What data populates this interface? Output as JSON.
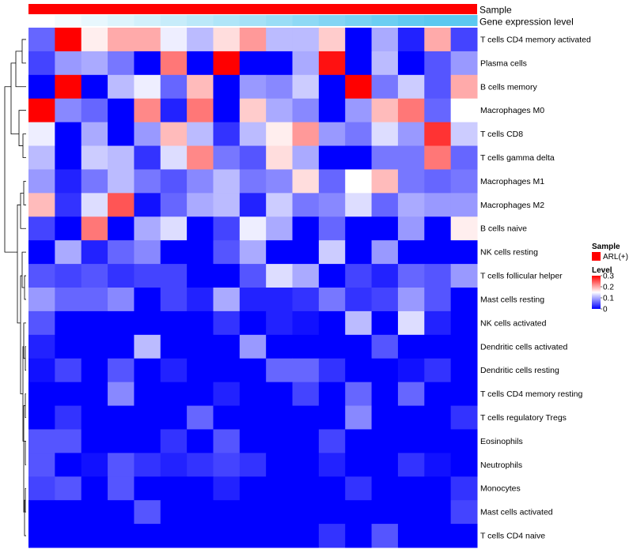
{
  "chart_data": {
    "type": "heatmap",
    "title": "",
    "annotations": {
      "sample_label": "Sample",
      "sample_color": "#ff0000",
      "expression_label": "Gene expression level",
      "expression_colors": [
        "#ffffff",
        "#5bc8f0"
      ]
    },
    "rows": [
      "T cells CD4 memory activated",
      "Plasma cells",
      "B cells memory",
      "Macrophages M0",
      "T cells CD8",
      "T cells gamma delta",
      "Macrophages M1",
      "Macrophages M2",
      "B cells naive",
      "NK cells resting",
      "T cells follicular helper",
      "Mast cells resting",
      "NK cells activated",
      "Dendritic cells activated",
      "Dendritic cells resting",
      "T cells CD4 memory resting",
      "T cells regulatory  Tregs",
      "Eosinophils",
      "Neutrophils",
      "Monocytes",
      "Mast cells activated",
      "T cells CD4 naive"
    ],
    "n_columns": 17,
    "values": [
      [
        0.06,
        0.3,
        0.16,
        0.2,
        0.2,
        0.14,
        0.11,
        0.17,
        0.21,
        0.11,
        0.11,
        0.18,
        0.0,
        0.1,
        0.02,
        0.2,
        0.04
      ],
      [
        0.04,
        0.09,
        0.1,
        0.07,
        0.0,
        0.23,
        0.0,
        0.3,
        0.0,
        0.0,
        0.1,
        0.29,
        0.0,
        0.11,
        0.0,
        0.05,
        0.09
      ],
      [
        0.0,
        0.3,
        0.0,
        0.11,
        0.14,
        0.06,
        0.19,
        0.0,
        0.09,
        0.08,
        0.12,
        0.0,
        0.3,
        0.07,
        0.12,
        0.05,
        0.2
      ],
      [
        0.3,
        0.08,
        0.06,
        0.0,
        0.22,
        0.02,
        0.23,
        0.0,
        0.18,
        0.1,
        0.08,
        0.0,
        0.09,
        0.19,
        0.23,
        0.06,
        0.15
      ],
      [
        0.14,
        0.0,
        0.1,
        0.0,
        0.09,
        0.19,
        0.11,
        0.03,
        0.11,
        0.16,
        0.21,
        0.09,
        0.07,
        0.13,
        0.09,
        0.27,
        0.12
      ],
      [
        0.11,
        0.0,
        0.12,
        0.11,
        0.03,
        0.13,
        0.22,
        0.07,
        0.05,
        0.17,
        0.1,
        0.0,
        0.0,
        0.07,
        0.07,
        0.23,
        0.06
      ],
      [
        0.09,
        0.02,
        0.07,
        0.11,
        0.07,
        0.05,
        0.08,
        0.11,
        0.07,
        0.08,
        0.17,
        0.06,
        0.15,
        0.19,
        0.07,
        0.06,
        0.07
      ],
      [
        0.19,
        0.03,
        0.13,
        0.25,
        0.01,
        0.06,
        0.1,
        0.11,
        0.02,
        0.12,
        0.07,
        0.08,
        0.13,
        0.06,
        0.1,
        0.09,
        0.09
      ],
      [
        0.04,
        0.0,
        0.23,
        0.0,
        0.1,
        0.13,
        0.0,
        0.04,
        0.14,
        0.1,
        0.0,
        0.06,
        0.0,
        0.0,
        0.09,
        0.0,
        0.16
      ],
      [
        0.0,
        0.1,
        0.02,
        0.06,
        0.08,
        0.0,
        0.0,
        0.05,
        0.1,
        0.0,
        0.0,
        0.12,
        0.0,
        0.09,
        0.0,
        0.0,
        0.0
      ],
      [
        0.05,
        0.04,
        0.05,
        0.03,
        0.04,
        0.04,
        0.0,
        0.0,
        0.05,
        0.13,
        0.1,
        0.0,
        0.04,
        0.02,
        0.06,
        0.05,
        0.09
      ],
      [
        0.09,
        0.06,
        0.06,
        0.08,
        0.0,
        0.04,
        0.02,
        0.1,
        0.02,
        0.02,
        0.03,
        0.07,
        0.03,
        0.04,
        0.09,
        0.05,
        0.0
      ],
      [
        0.05,
        0.0,
        0.0,
        0.0,
        0.0,
        0.0,
        0.0,
        0.03,
        0.0,
        0.02,
        0.01,
        0.0,
        0.11,
        0.0,
        0.13,
        0.02,
        0.0
      ],
      [
        0.02,
        0.0,
        0.0,
        0.0,
        0.11,
        0.0,
        0.0,
        0.0,
        0.09,
        0.0,
        0.0,
        0.0,
        0.0,
        0.05,
        0.0,
        0.0,
        0.0
      ],
      [
        0.01,
        0.04,
        0.0,
        0.05,
        0.0,
        0.02,
        0.0,
        0.0,
        0.0,
        0.06,
        0.06,
        0.03,
        0.0,
        0.0,
        0.01,
        0.03,
        0.0
      ],
      [
        0.0,
        0.0,
        0.0,
        0.08,
        0.0,
        0.0,
        0.0,
        0.02,
        0.0,
        0.0,
        0.04,
        0.0,
        0.06,
        0.0,
        0.06,
        0.0,
        0.0
      ],
      [
        0.0,
        0.03,
        0.0,
        0.0,
        0.0,
        0.0,
        0.06,
        0.0,
        0.0,
        0.0,
        0.0,
        0.0,
        0.08,
        0.0,
        0.0,
        0.0,
        0.03
      ],
      [
        0.05,
        0.05,
        0.0,
        0.0,
        0.0,
        0.03,
        0.0,
        0.05,
        0.0,
        0.0,
        0.0,
        0.04,
        0.0,
        0.0,
        0.0,
        0.0,
        0.0
      ],
      [
        0.05,
        0.0,
        0.01,
        0.05,
        0.03,
        0.02,
        0.03,
        0.04,
        0.03,
        0.0,
        0.0,
        0.02,
        0.0,
        0.0,
        0.03,
        0.01,
        0.0
      ],
      [
        0.04,
        0.05,
        0.0,
        0.05,
        0.0,
        0.0,
        0.0,
        0.02,
        0.0,
        0.0,
        0.0,
        0.0,
        0.03,
        0.0,
        0.0,
        0.0,
        0.03
      ],
      [
        0.0,
        0.0,
        0.0,
        0.0,
        0.05,
        0.0,
        0.0,
        0.0,
        0.0,
        0.0,
        0.0,
        0.0,
        0.0,
        0.0,
        0.0,
        0.0,
        0.04
      ],
      [
        0.0,
        0.0,
        0.0,
        0.0,
        0.0,
        0.0,
        0.0,
        0.0,
        0.0,
        0.0,
        0.0,
        0.03,
        0.0,
        0.05,
        0.0,
        0.0,
        0.0
      ]
    ],
    "color_scale": {
      "min": 0,
      "max": 0.3,
      "colors": [
        "#0000ff",
        "#ffffff",
        "#ff0000"
      ],
      "mid": 0.15
    },
    "legend": {
      "sample_title": "Sample",
      "sample_entry": "ARL(+)",
      "level_title": "Level",
      "ticks": [
        "0.3",
        "0.2",
        "0.1",
        "0"
      ]
    }
  }
}
